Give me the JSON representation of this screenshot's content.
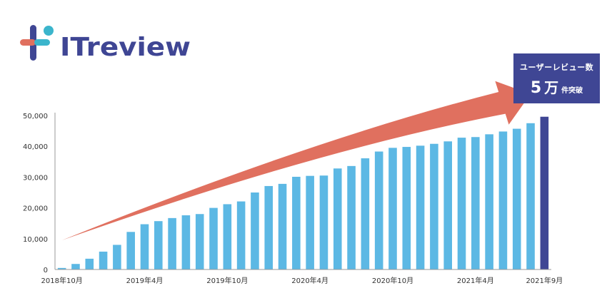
{
  "brand": {
    "name": "ITreview",
    "colors": {
      "navy": "#3f4694",
      "teal": "#3bb5cc",
      "coral": "#e0705f"
    }
  },
  "callout": {
    "line1": "ユーザーレビュー数",
    "number": "5",
    "unit": "万",
    "suffix": "件突破"
  },
  "colors": {
    "bar": "#5cb8e4",
    "highlight_bar": "#3f4694",
    "arrow": "#e0705f",
    "axis": "#999999"
  },
  "chart_data": {
    "type": "bar",
    "title": "",
    "xlabel": "",
    "ylabel": "",
    "ylim": [
      0,
      50000
    ],
    "yticks": [
      0,
      10000,
      20000,
      30000,
      40000,
      50000
    ],
    "ytick_labels": [
      "0",
      "10,000",
      "20,000",
      "30,000",
      "40,000",
      "50,000"
    ],
    "grid": false,
    "legend": "none",
    "xtick_labels": [
      {
        "index": 0,
        "label": "2018年10月"
      },
      {
        "index": 6,
        "label": "2019年4月"
      },
      {
        "index": 12,
        "label": "2019年10月"
      },
      {
        "index": 18,
        "label": "2020年4月"
      },
      {
        "index": 24,
        "label": "2020年10月"
      },
      {
        "index": 30,
        "label": "2021年4月"
      },
      {
        "index": 35,
        "label": "2021年9月"
      }
    ],
    "categories": [
      "2018-10",
      "2018-11",
      "2018-12",
      "2019-01",
      "2019-02",
      "2019-03",
      "2019-04",
      "2019-05",
      "2019-06",
      "2019-07",
      "2019-08",
      "2019-09",
      "2019-10",
      "2019-11",
      "2019-12",
      "2020-01",
      "2020-02",
      "2020-03",
      "2020-04",
      "2020-05",
      "2020-06",
      "2020-07",
      "2020-08",
      "2020-09",
      "2020-10",
      "2020-11",
      "2020-12",
      "2021-01",
      "2021-02",
      "2021-03",
      "2021-04",
      "2021-05",
      "2021-06",
      "2021-07",
      "2021-08",
      "2021-09"
    ],
    "values": [
      500,
      1800,
      3500,
      5800,
      8000,
      12200,
      14700,
      15700,
      16700,
      17600,
      18000,
      20000,
      21200,
      22100,
      25000,
      27100,
      27800,
      30100,
      30400,
      30500,
      32800,
      33600,
      36100,
      38300,
      39500,
      39800,
      40200,
      40800,
      41600,
      42800,
      43000,
      43900,
      44800,
      45700,
      47500,
      49600
    ],
    "highlight_index": 35,
    "trend_arrow": {
      "from": {
        "x_index": 0,
        "y": 9500
      },
      "to": {
        "x_index": 34,
        "y": 57000
      }
    }
  }
}
